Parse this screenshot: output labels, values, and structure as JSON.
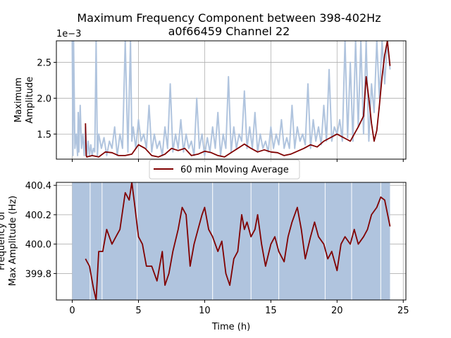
{
  "figure": {
    "title_line1": "Maximum Frequency Component between 398-402Hz",
    "title_line2": "a0f66459 Channel 22"
  },
  "chart_data": [
    {
      "type": "line",
      "panel": "top",
      "ylabel_line1": "Maximum",
      "ylabel_line2": "Amplitude",
      "offset_label": "1e−3",
      "xlim": [
        -1.2,
        25.2
      ],
      "ylim": [
        1.15,
        2.8
      ],
      "yscale_note": "values shown x1e-3",
      "xticks": [
        0,
        5,
        10,
        15,
        20,
        25
      ],
      "yticks": [
        1.5,
        2.0,
        2.5
      ],
      "ytick_labels": [
        "1.5",
        "2.0",
        "2.5"
      ],
      "grid": true,
      "series": [
        {
          "role": "raw",
          "color": "#b0c4de",
          "x": [
            0,
            0.05,
            0.1,
            0.2,
            0.3,
            0.4,
            0.45,
            0.5,
            0.6,
            0.7,
            0.8,
            0.9,
            1.0,
            1.1,
            1.2,
            1.3,
            1.4,
            1.5,
            1.6,
            1.7,
            1.8,
            1.9,
            2.0,
            2.2,
            2.4,
            2.6,
            2.8,
            3.0,
            3.2,
            3.4,
            3.6,
            3.8,
            4.0,
            4.2,
            4.4,
            4.5,
            4.6,
            4.8,
            5.0,
            5.2,
            5.4,
            5.6,
            5.8,
            6.0,
            6.2,
            6.4,
            6.6,
            6.8,
            7.0,
            7.2,
            7.4,
            7.6,
            7.8,
            8.0,
            8.2,
            8.4,
            8.6,
            8.8,
            9.0,
            9.2,
            9.4,
            9.6,
            9.8,
            10.0,
            10.2,
            10.4,
            10.6,
            10.8,
            11.0,
            11.2,
            11.4,
            11.6,
            11.8,
            12.0,
            12.2,
            12.4,
            12.6,
            12.8,
            13.0,
            13.2,
            13.4,
            13.6,
            13.8,
            14.0,
            14.2,
            14.4,
            14.6,
            14.8,
            15.0,
            15.2,
            15.4,
            15.6,
            15.8,
            16.0,
            16.2,
            16.4,
            16.6,
            16.8,
            17.0,
            17.2,
            17.4,
            17.6,
            17.8,
            18.0,
            18.2,
            18.4,
            18.6,
            18.8,
            19.0,
            19.2,
            19.4,
            19.6,
            19.8,
            20.0,
            20.2,
            20.4,
            20.6,
            20.8,
            21.0,
            21.2,
            21.4,
            21.6,
            21.8,
            22.0,
            22.2,
            22.4,
            22.6,
            22.8,
            23.0,
            23.2,
            23.4,
            23.6,
            23.8,
            24.0
          ],
          "values": [
            2.8,
            1.2,
            2.8,
            1.3,
            1.5,
            1.2,
            1.8,
            1.25,
            1.9,
            1.3,
            1.5,
            1.2,
            1.6,
            1.18,
            1.4,
            1.2,
            1.35,
            1.2,
            1.3,
            1.25,
            2.8,
            1.2,
            1.5,
            1.3,
            1.45,
            1.2,
            1.4,
            1.3,
            1.6,
            1.2,
            1.5,
            1.3,
            2.8,
            1.25,
            2.8,
            1.4,
            1.6,
            1.3,
            1.7,
            1.4,
            1.5,
            1.3,
            1.9,
            1.25,
            1.5,
            1.3,
            1.4,
            1.2,
            1.6,
            1.3,
            2.2,
            1.25,
            1.5,
            1.3,
            1.7,
            1.25,
            1.5,
            1.3,
            1.4,
            1.2,
            2.0,
            1.3,
            1.5,
            1.2,
            1.45,
            1.25,
            1.6,
            1.3,
            1.8,
            1.2,
            1.5,
            1.3,
            2.3,
            1.25,
            1.6,
            1.3,
            1.5,
            1.4,
            2.1,
            1.3,
            1.6,
            1.3,
            1.8,
            1.25,
            1.5,
            1.3,
            1.4,
            1.25,
            1.6,
            1.3,
            1.5,
            1.35,
            1.7,
            1.3,
            1.45,
            1.3,
            1.9,
            1.3,
            1.6,
            1.4,
            1.5,
            1.35,
            2.2,
            1.3,
            1.7,
            1.4,
            1.6,
            1.35,
            1.9,
            1.4,
            2.4,
            1.4,
            1.6,
            1.5,
            1.7,
            1.4,
            2.8,
            1.45,
            2.5,
            1.4,
            2.8,
            1.6,
            2.8,
            1.5,
            2.8,
            1.4,
            2.2,
            1.8,
            2.8,
            2.0,
            2.8,
            2.2,
            2.8,
            2.4
          ]
        },
        {
          "role": "moving_average",
          "name": "60 min Moving Average",
          "color": "#800000",
          "x": [
            1.0,
            1.05,
            1.1,
            1.5,
            2.0,
            2.5,
            3.0,
            3.5,
            4.0,
            4.5,
            5.0,
            5.5,
            6.0,
            6.5,
            7.0,
            7.5,
            8.0,
            8.5,
            9.0,
            9.5,
            10.0,
            10.5,
            11.0,
            11.5,
            12.0,
            12.5,
            13.0,
            13.5,
            14.0,
            14.5,
            15.0,
            15.5,
            16.0,
            16.5,
            17.0,
            17.5,
            18.0,
            18.5,
            19.0,
            19.5,
            20.0,
            20.5,
            21.0,
            21.3,
            21.6,
            22.0,
            22.2,
            22.4,
            22.6,
            22.8,
            23.0,
            23.2,
            23.4,
            23.6,
            23.8,
            24.0
          ],
          "values": [
            1.65,
            1.2,
            1.18,
            1.2,
            1.18,
            1.25,
            1.24,
            1.2,
            1.2,
            1.22,
            1.35,
            1.3,
            1.2,
            1.18,
            1.22,
            1.3,
            1.27,
            1.3,
            1.2,
            1.22,
            1.26,
            1.24,
            1.2,
            1.18,
            1.24,
            1.3,
            1.36,
            1.3,
            1.25,
            1.28,
            1.25,
            1.24,
            1.2,
            1.22,
            1.26,
            1.3,
            1.35,
            1.32,
            1.4,
            1.45,
            1.5,
            1.45,
            1.4,
            1.5,
            1.6,
            1.75,
            2.3,
            2.0,
            1.65,
            1.4,
            1.55,
            1.9,
            2.3,
            2.6,
            2.8,
            2.45
          ]
        }
      ]
    },
    {
      "type": "line",
      "panel": "bottom",
      "xlabel": "Time (h)",
      "ylabel_line1": "Frequency of",
      "ylabel_line2": "Max Amplitude (Hz)",
      "xlim": [
        -1.2,
        25.2
      ],
      "ylim": [
        399.62,
        400.42
      ],
      "xticks": [
        0,
        5,
        10,
        15,
        20,
        25
      ],
      "xtick_labels": [
        "0",
        "5",
        "10",
        "15",
        "20",
        "25"
      ],
      "yticks": [
        399.8,
        400.0,
        400.2,
        400.4
      ],
      "ytick_labels": [
        "399.8",
        "400.0",
        "400.2",
        "400.4"
      ],
      "grid": true,
      "series": [
        {
          "role": "raw_band",
          "color": "#b0c4de",
          "x_range": [
            0,
            24
          ],
          "y_range": [
            399.62,
            400.42
          ],
          "gaps_x": [
            1.35,
            2.25,
            4.9,
            10.6,
            13.5,
            15.6,
            19.1,
            21.1,
            23.3
          ]
        },
        {
          "role": "moving_average",
          "name": "60 min Moving Average",
          "color": "#800000",
          "x": [
            1.0,
            1.3,
            1.6,
            1.8,
            2.0,
            2.3,
            2.6,
            3.0,
            3.3,
            3.6,
            4.0,
            4.3,
            4.5,
            4.7,
            5.0,
            5.3,
            5.6,
            6.0,
            6.4,
            6.8,
            7.0,
            7.3,
            7.6,
            8.0,
            8.3,
            8.6,
            8.9,
            9.2,
            9.5,
            9.8,
            10.0,
            10.3,
            10.6,
            11.0,
            11.3,
            11.6,
            11.9,
            12.2,
            12.5,
            12.8,
            13.0,
            13.2,
            13.5,
            13.8,
            14.0,
            14.3,
            14.6,
            15.0,
            15.3,
            15.6,
            16.0,
            16.3,
            16.6,
            17.0,
            17.3,
            17.6,
            18.0,
            18.3,
            18.6,
            19.0,
            19.3,
            19.6,
            20.0,
            20.3,
            20.6,
            21.0,
            21.3,
            21.6,
            22.0,
            22.3,
            22.6,
            23.0,
            23.3,
            23.6,
            24.0
          ],
          "values": [
            399.9,
            399.85,
            399.7,
            399.62,
            399.95,
            399.95,
            400.1,
            400.0,
            400.05,
            400.1,
            400.35,
            400.3,
            400.42,
            400.28,
            400.05,
            400.0,
            399.85,
            399.85,
            399.75,
            399.95,
            399.72,
            399.8,
            399.95,
            400.1,
            400.25,
            400.2,
            399.85,
            400.0,
            400.1,
            400.2,
            400.25,
            400.1,
            400.05,
            399.95,
            400.02,
            399.8,
            399.72,
            399.9,
            399.95,
            400.2,
            400.1,
            400.15,
            400.05,
            400.1,
            400.2,
            400.0,
            399.85,
            400.0,
            400.05,
            399.95,
            399.88,
            400.05,
            400.15,
            400.25,
            400.1,
            399.9,
            400.05,
            400.15,
            400.05,
            400.0,
            399.9,
            399.95,
            399.82,
            400.0,
            400.05,
            400.0,
            400.1,
            400.0,
            400.05,
            400.1,
            400.2,
            400.25,
            400.32,
            400.3,
            400.12
          ]
        }
      ]
    }
  ],
  "legend": {
    "label": "60 min Moving Average",
    "placement": "between panels, center"
  }
}
